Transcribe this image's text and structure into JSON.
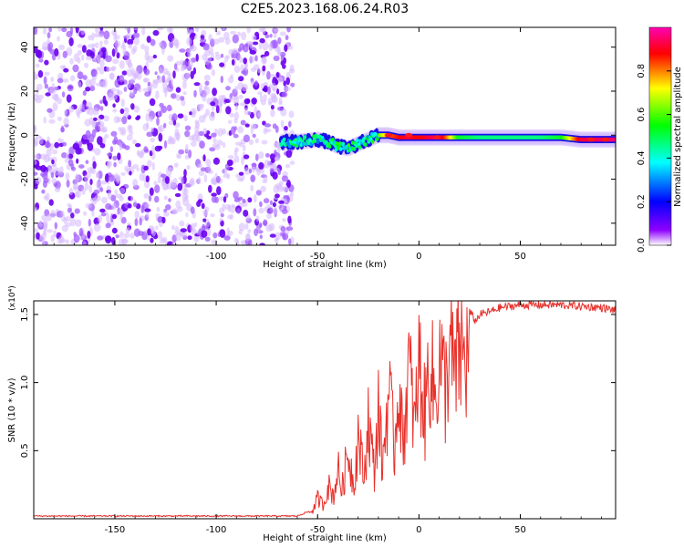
{
  "figure_title": "C2E5.2023.168.06.24.R03",
  "chart_data": [
    {
      "type": "heatmap",
      "xlabel": "Height of straight line (km)",
      "ylabel": "Frequency (Hz)",
      "xlim": [
        -190,
        97
      ],
      "ylim": [
        -50,
        49
      ],
      "xticks": [
        -150,
        -100,
        -50,
        0,
        50
      ],
      "yticks": [
        -40,
        -20,
        0,
        20,
        40
      ],
      "colorbar": {
        "label": "Normalized spectral amplitude",
        "range": [
          0.0,
          1.0
        ],
        "ticks": [
          0.0,
          0.2,
          0.4,
          0.6,
          0.8
        ],
        "colormap": [
          "#ffffff",
          "#8e00ff",
          "#0000ff",
          "#00ffff",
          "#00ff00",
          "#ffff00",
          "#ff0000",
          "#ff00b4"
        ]
      },
      "noise_region_x": [
        -190,
        -65
      ],
      "noise_level": 0.12,
      "ridge": {
        "x": [
          -68,
          -60,
          -55,
          -50,
          -45,
          -40,
          -35,
          -30,
          -25,
          -20,
          -15,
          -10,
          -5,
          0,
          10,
          20,
          30,
          40,
          50,
          60,
          70,
          80,
          97
        ],
        "freq": [
          -3,
          -3,
          -2.5,
          -2,
          -3,
          -5,
          -6,
          -4,
          -2,
          0,
          0,
          -1,
          -1,
          -1,
          -1,
          -1,
          -1,
          -1,
          -1,
          -1,
          -1,
          -2,
          -2
        ],
        "amplitude": [
          0.25,
          0.35,
          0.4,
          0.45,
          0.4,
          0.45,
          0.5,
          0.5,
          0.55,
          0.6,
          0.8,
          0.85,
          0.9,
          0.85,
          0.95,
          0.55,
          0.5,
          0.5,
          0.5,
          0.5,
          0.55,
          0.9,
          0.95
        ]
      }
    },
    {
      "type": "line",
      "xlabel": "Height of straight line (km)",
      "ylabel": "SNR (10 * v/v)",
      "y_multiplier": "(x10⁴)",
      "xlim": [
        -190,
        97
      ],
      "ylim": [
        0,
        1.6
      ],
      "xticks": [
        -150,
        -100,
        -50,
        0,
        50
      ],
      "yticks": [
        0.5,
        1.0,
        1.5
      ],
      "ytick_labels": [
        "0.5",
        "1.0",
        "1.5"
      ],
      "line_color": "#e8302a",
      "series": [
        {
          "x": [
            -190,
            -150,
            -100,
            -60,
            -55,
            -52,
            -50,
            -47,
            -45,
            -42,
            -40,
            -38,
            -35,
            -32,
            -30,
            -27,
            -25,
            -22,
            -20,
            -18,
            -15,
            -12,
            -10,
            -8,
            -5,
            -2,
            0,
            3,
            5,
            8,
            10,
            13,
            15,
            18,
            20,
            23,
            25,
            28,
            30,
            35,
            40,
            45,
            50,
            60,
            70,
            80,
            90,
            97
          ],
          "values": [
            0.02,
            0.02,
            0.02,
            0.02,
            0.05,
            0.08,
            0.18,
            0.12,
            0.3,
            0.2,
            0.45,
            0.25,
            0.6,
            0.3,
            0.75,
            0.35,
            0.9,
            0.4,
            1.0,
            0.45,
            1.15,
            0.6,
            1.3,
            0.65,
            1.35,
            0.8,
            1.4,
            0.9,
            1.45,
            1.05,
            1.45,
            1.15,
            1.5,
            1.25,
            1.5,
            1.4,
            1.52,
            1.45,
            1.5,
            1.52,
            1.55,
            1.56,
            1.57,
            1.57,
            1.57,
            1.56,
            1.55,
            1.53
          ]
        }
      ]
    }
  ]
}
